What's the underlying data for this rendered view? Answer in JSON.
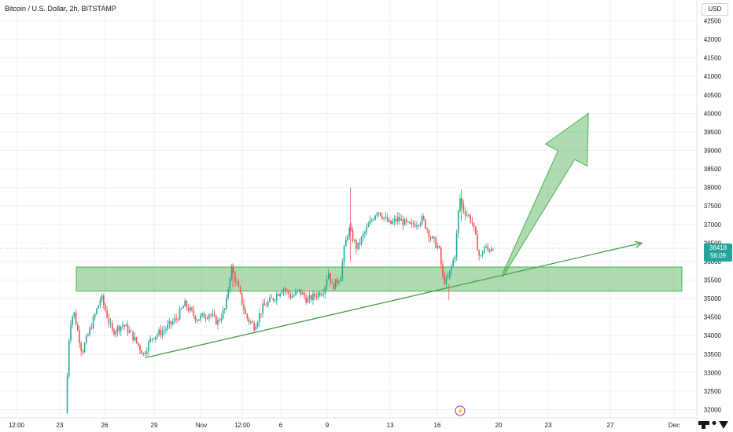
{
  "header": {
    "title": "Bitcoin / U.S. Dollar, 2h, BITSTAMP",
    "currency": "USD"
  },
  "price_tag": {
    "price": "36418",
    "countdown": "56:09"
  },
  "colors": {
    "up": "#26a69a",
    "down": "#ef5350",
    "zone": "#4caf50",
    "trendline": "#43a047",
    "grid": "#eef0f4",
    "text": "#131722"
  },
  "chart_data": {
    "type": "candlestick",
    "title": "Bitcoin / U.S. Dollar, 2h, BITSTAMP",
    "ylabel": "USD",
    "ylim": [
      31800,
      42900
    ],
    "yticks": [
      32000,
      32500,
      33000,
      33500,
      34000,
      34500,
      35000,
      35500,
      36000,
      36500,
      37000,
      37500,
      38000,
      38500,
      39000,
      39500,
      40000,
      40500,
      41000,
      41500,
      42000,
      42500
    ],
    "xticks": [
      "12:00",
      "23",
      "26",
      "29",
      "Nov",
      "12:00",
      "6",
      "9",
      "13",
      "16",
      "20",
      "23",
      "27",
      "Dec"
    ],
    "grid": true,
    "last_price": 36418,
    "price_path": [
      {
        "x": "Oct 23 12:00",
        "y": 31900
      },
      {
        "x": "Oct 23 18:00",
        "y": 34300
      },
      {
        "x": "Oct 24 00:00",
        "y": 34650
      },
      {
        "x": "Oct 24 12:00",
        "y": 33550
      },
      {
        "x": "Oct 25 06:00",
        "y": 34500
      },
      {
        "x": "Oct 25 16:00",
        "y": 35050
      },
      {
        "x": "Oct 26 08:00",
        "y": 34100
      },
      {
        "x": "Oct 27 00:00",
        "y": 34300
      },
      {
        "x": "Oct 27 12:00",
        "y": 34050
      },
      {
        "x": "Oct 28 06:00",
        "y": 33500
      },
      {
        "x": "Oct 28 18:00",
        "y": 33950
      },
      {
        "x": "Oct 29 12:00",
        "y": 34150
      },
      {
        "x": "Oct 30 06:00",
        "y": 34450
      },
      {
        "x": "Oct 30 18:00",
        "y": 34850
      },
      {
        "x": "Oct 31 12:00",
        "y": 34450
      },
      {
        "x": "Nov 1 06:00",
        "y": 34600
      },
      {
        "x": "Nov 1 18:00",
        "y": 34350
      },
      {
        "x": "Nov 2 06:00",
        "y": 34750
      },
      {
        "x": "Nov 2 14:00",
        "y": 35850
      },
      {
        "x": "Nov 3 00:00",
        "y": 35300
      },
      {
        "x": "Nov 3 12:00",
        "y": 34500
      },
      {
        "x": "Nov 4 00:00",
        "y": 34250
      },
      {
        "x": "Nov 4 12:00",
        "y": 34750
      },
      {
        "x": "Nov 5 06:00",
        "y": 35050
      },
      {
        "x": "Nov 5 18:00",
        "y": 35300
      },
      {
        "x": "Nov 6 06:00",
        "y": 35050
      },
      {
        "x": "Nov 6 18:00",
        "y": 35200
      },
      {
        "x": "Nov 7 06:00",
        "y": 34950
      },
      {
        "x": "Nov 7 18:00",
        "y": 35100
      },
      {
        "x": "Nov 8 06:00",
        "y": 35250
      },
      {
        "x": "Nov 8 12:00",
        "y": 35750
      },
      {
        "x": "Nov 8 18:00",
        "y": 35300
      },
      {
        "x": "Nov 9 06:00",
        "y": 35600
      },
      {
        "x": "Nov 9 12:00",
        "y": 36400
      },
      {
        "x": "Nov 9 18:00",
        "y": 36900
      },
      {
        "x": "Nov 10 06:00",
        "y": 36350
      },
      {
        "x": "Nov 10 18:00",
        "y": 36800
      },
      {
        "x": "Nov 11 12:00",
        "y": 37400
      },
      {
        "x": "Nov 12 06:00",
        "y": 37000
      },
      {
        "x": "Nov 12 18:00",
        "y": 37150
      },
      {
        "x": "Nov 13 12:00",
        "y": 36950
      },
      {
        "x": "Nov 14 06:00",
        "y": 37150
      },
      {
        "x": "Nov 14 18:00",
        "y": 36650
      },
      {
        "x": "Nov 15 06:00",
        "y": 36350
      },
      {
        "x": "Nov 15 12:00",
        "y": 35500
      },
      {
        "x": "Nov 15 18:00",
        "y": 35450
      },
      {
        "x": "Nov 16 06:00",
        "y": 36250
      },
      {
        "x": "Nov 16 12:00",
        "y": 37750
      },
      {
        "x": "Nov 16 18:00",
        "y": 37400
      },
      {
        "x": "Nov 17 06:00",
        "y": 37100
      },
      {
        "x": "Nov 17 12:00",
        "y": 36600
      },
      {
        "x": "Nov 17 18:00",
        "y": 36050
      },
      {
        "x": "Nov 18 00:00",
        "y": 36400
      },
      {
        "x": "Nov 18 06:00",
        "y": 36300
      },
      {
        "x": "Nov 18 12:00",
        "y": 36418
      }
    ],
    "annotations": {
      "support_zone": {
        "from": 35200,
        "to": 35850
      },
      "trendline": {
        "start": {
          "x": "Oct 28 06:00",
          "y": 33400
        },
        "end": {
          "x": "Nov 27 12:00",
          "y": 36500
        }
      },
      "projection_arrow": {
        "from": {
          "x": "Nov 19 00:00",
          "y": 35600
        },
        "to": {
          "x": "Nov 24 06:00",
          "y": 40000
        }
      }
    }
  }
}
